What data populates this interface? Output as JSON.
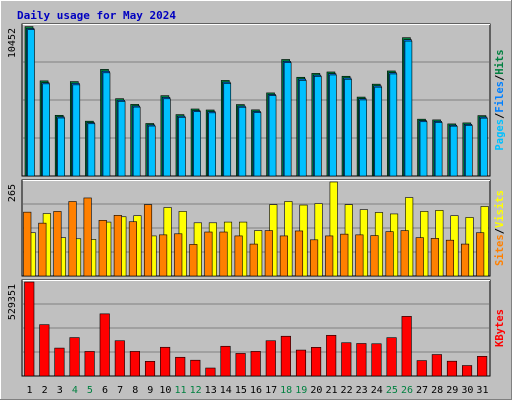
{
  "chart_data": {
    "type": "bar",
    "title": "Daily usage for May 2024",
    "categories": [
      "1",
      "2",
      "3",
      "4",
      "5",
      "6",
      "7",
      "8",
      "9",
      "10",
      "11",
      "12",
      "13",
      "14",
      "15",
      "16",
      "17",
      "18",
      "19",
      "20",
      "21",
      "22",
      "23",
      "24",
      "25",
      "26",
      "27",
      "28",
      "29",
      "30",
      "31"
    ],
    "weekend_days": [
      "4",
      "5",
      "11",
      "12",
      "18",
      "19",
      "25",
      "26"
    ],
    "panels": [
      {
        "id": "pages-files-hits",
        "max_label": "10452",
        "ylim": [
          0,
          10452
        ],
        "legend": [
          {
            "label": "Pages",
            "color": "#00c0ff"
          },
          {
            "label": "/",
            "color": "#000000"
          },
          {
            "label": "Files",
            "color": "#0080ff"
          },
          {
            "label": "/",
            "color": "#000000"
          },
          {
            "label": "Hits",
            "color": "#008040"
          }
        ],
        "series": [
          {
            "name": "Hits",
            "color": "#008040",
            "values": [
              10410,
              6630,
              4230,
              6580,
              3820,
              7430,
              5390,
              4990,
              3660,
              5600,
              4280,
              4670,
              4600,
              6660,
              4980,
              4610,
              5790,
              8120,
              6880,
              7150,
              7250,
              6950,
              5500,
              6400,
              7320,
              9640,
              3960,
              3910,
              3630,
              3700,
              4210
            ]
          },
          {
            "name": "Files",
            "color": "#0080ff",
            "values": [
              10280,
              6500,
              4120,
              6460,
              3720,
              7300,
              5280,
              4880,
              3560,
              5480,
              4170,
              4560,
              4490,
              6540,
              4870,
              4500,
              5680,
              7990,
              6760,
              7030,
              7130,
              6830,
              5390,
              6280,
              7200,
              9500,
              3860,
              3810,
              3540,
              3600,
              4110
            ]
          },
          {
            "name": "Pages",
            "color": "#00c0ff",
            "values": [
              10200,
              6420,
              4040,
              6350,
              3640,
              7190,
              5200,
              4800,
              3480,
              5380,
              4090,
              4480,
              4400,
              6450,
              4790,
              4420,
              5600,
              7900,
              6660,
              6940,
              7040,
              6740,
              5300,
              6190,
              7110,
              9400,
              3780,
              3730,
              3470,
              3520,
              4030
            ]
          }
        ]
      },
      {
        "id": "sites-visits",
        "max_label": "265",
        "ylim": [
          0,
          265
        ],
        "legend": [
          {
            "label": "Sites",
            "color": "#ff8000"
          },
          {
            "label": "/",
            "color": "#000000"
          },
          {
            "label": "Visits",
            "color": "#ffff00"
          }
        ],
        "series": [
          {
            "name": "Visits",
            "color": "#ffff00",
            "values": [
              122,
              176,
              108,
              105,
              103,
              152,
              167,
              170,
              113,
              193,
              182,
              150,
              150,
              152,
              152,
              128,
              201,
              210,
              200,
              204,
              265,
              201,
              187,
              179,
              175,
              221,
              182,
              185,
              170,
              165,
              196
            ]
          },
          {
            "name": "Sites",
            "color": "#ff8000",
            "values": [
              180,
              149,
              182,
              210,
              220,
              157,
              171,
              153,
              201,
              116,
              119,
              89,
              124,
              124,
              113,
              90,
              128,
              113,
              127,
              102,
              113,
              118,
              116,
              114,
              125,
              128,
              108,
              106,
              101,
              90,
              122
            ]
          }
        ]
      },
      {
        "id": "kbytes",
        "max_label": "529351",
        "ylim": [
          0,
          529351
        ],
        "legend": [
          {
            "label": "KBytes",
            "color": "#ff0000"
          }
        ],
        "series": [
          {
            "name": "KBytes",
            "color": "#ff0000",
            "values": [
              529351,
              289110,
              157140,
              216320,
              138360,
              349980,
              198620,
              138570,
              82690,
              161860,
              105500,
              88960,
              44890,
              167510,
              127200,
              138660,
              198570,
              223960,
              145960,
              161500,
              229250,
              187340,
              183040,
              181580,
              215880,
              335830,
              86790,
              120860,
              83400,
              58910,
              110890
            ]
          }
        ]
      }
    ]
  }
}
